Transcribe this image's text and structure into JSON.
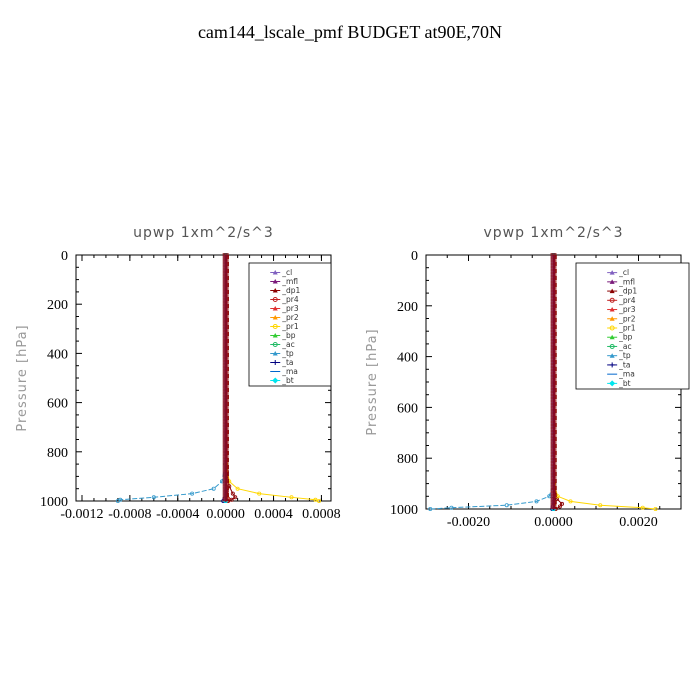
{
  "page": {
    "title": "cam144_lscale_pmf  BUDGET at90E,70N"
  },
  "chart_data": [
    {
      "type": "line",
      "title": "upwp   1xm^2/s^3",
      "xlabel": "",
      "ylabel": "Pressure [hPa]",
      "xlim": [
        -0.00125,
        0.00088
      ],
      "ylim": [
        1000,
        0
      ],
      "x_ticks": [
        -0.0012,
        -0.0008,
        -0.0004,
        0.0,
        0.0004,
        0.0008
      ],
      "x_tick_labels": [
        "-0.0012",
        "-0.0008",
        "-0.0004",
        "0.0000",
        "0.0004",
        "0.0008"
      ],
      "y_ticks": [
        0,
        200,
        400,
        600,
        800,
        1000
      ],
      "y_tick_labels": [
        "0",
        "200",
        "400",
        "600",
        "800",
        "1000"
      ],
      "legend_position": "top-right",
      "series": [
        {
          "name": "_cl",
          "color": "#8060c0",
          "pressure": [
            0,
            900,
            960,
            1000
          ],
          "values": [
            0,
            0,
            0,
            0
          ]
        },
        {
          "name": "_mfl",
          "color": "#7a1a7a",
          "pressure": [
            0,
            900,
            960,
            1000
          ],
          "values": [
            0,
            0,
            0,
            0
          ]
        },
        {
          "name": "_dp1",
          "color": "#8b0000",
          "pressure": [
            0,
            880,
            940,
            970,
            985,
            995,
            1000
          ],
          "values": [
            0,
            1e-05,
            3e-05,
            6e-05,
            8e-05,
            5e-05,
            2e-05
          ]
        },
        {
          "name": "_pr4",
          "color": "#c02020",
          "pressure": [
            0,
            880,
            960,
            990,
            1000
          ],
          "values": [
            0,
            0,
            1e-05,
            2e-05,
            1e-05
          ]
        },
        {
          "name": "_pr3",
          "color": "#e03030",
          "pressure": [
            0,
            900,
            980,
            1000
          ],
          "values": [
            0,
            0,
            0,
            0
          ]
        },
        {
          "name": "_pr2",
          "color": "#ff9900",
          "pressure": [
            0,
            900,
            980,
            1000
          ],
          "values": [
            0,
            0,
            1e-05,
            0
          ]
        },
        {
          "name": "_pr1",
          "color": "#ffd700",
          "pressure": [
            0,
            850,
            920,
            950,
            970,
            985,
            995,
            1000
          ],
          "values": [
            0,
            5e-06,
            3e-05,
            0.0001,
            0.00028,
            0.00055,
            0.00075,
            0.00078
          ]
        },
        {
          "name": "_bp",
          "color": "#33cc33",
          "pressure": [
            0,
            1000
          ],
          "values": [
            0,
            0
          ]
        },
        {
          "name": "_ac",
          "color": "#22bb66",
          "pressure": [
            0,
            1000
          ],
          "values": [
            0,
            0
          ]
        },
        {
          "name": "_tp",
          "color": "#3399cc",
          "pressure": [
            0,
            850,
            920,
            950,
            970,
            985,
            995,
            1000
          ],
          "values": [
            0,
            -5e-06,
            -3e-05,
            -0.0001,
            -0.00028,
            -0.0006,
            -0.00088,
            -0.0009
          ]
        },
        {
          "name": "_ta",
          "color": "#000080",
          "pressure": [
            0,
            960,
            990,
            1000
          ],
          "values": [
            0,
            0,
            -1e-05,
            -2e-05
          ]
        },
        {
          "name": "_ma",
          "color": "#0066cc",
          "pressure": [
            0,
            1000
          ],
          "values": [
            0,
            0
          ]
        },
        {
          "name": "_bt",
          "color": "#00e5ee",
          "pressure": [
            0,
            1000
          ],
          "values": [
            0,
            0
          ]
        }
      ]
    },
    {
      "type": "line",
      "title": "vpwp   1xm^2/s^3",
      "xlabel": "",
      "ylabel": "Pressure [hPa]",
      "xlim": [
        -0.003,
        0.003
      ],
      "ylim": [
        1000,
        0
      ],
      "x_ticks": [
        -0.002,
        0.0,
        0.002
      ],
      "x_tick_labels": [
        "-0.0020",
        "0.0000",
        "0.0020"
      ],
      "y_ticks": [
        0,
        200,
        400,
        600,
        800,
        1000
      ],
      "y_tick_labels": [
        "0",
        "200",
        "400",
        "600",
        "800",
        "1000"
      ],
      "legend_position": "top-right",
      "series": [
        {
          "name": "_cl",
          "color": "#8060c0",
          "pressure": [
            0,
            900,
            960,
            1000
          ],
          "values": [
            0,
            0,
            0,
            0
          ]
        },
        {
          "name": "_mfl",
          "color": "#7a1a7a",
          "pressure": [
            0,
            900,
            960,
            1000
          ],
          "values": [
            0,
            0,
            0,
            0
          ]
        },
        {
          "name": "_dp1",
          "color": "#8b0000",
          "pressure": [
            0,
            920,
            960,
            980,
            990,
            1000
          ],
          "values": [
            0,
            2e-05,
            8e-05,
            0.0002,
            0.00015,
            5e-05
          ]
        },
        {
          "name": "_pr4",
          "color": "#c02020",
          "pressure": [
            0,
            900,
            980,
            1000
          ],
          "values": [
            0,
            0,
            2e-05,
            1e-05
          ]
        },
        {
          "name": "_pr3",
          "color": "#e03030",
          "pressure": [
            0,
            900,
            980,
            1000
          ],
          "values": [
            0,
            0,
            0,
            0
          ]
        },
        {
          "name": "_pr2",
          "color": "#ff9900",
          "pressure": [
            0,
            900,
            980,
            1000
          ],
          "values": [
            0,
            0,
            2e-05,
            0
          ]
        },
        {
          "name": "_pr1",
          "color": "#ffd700",
          "pressure": [
            0,
            900,
            950,
            970,
            985,
            995,
            1000
          ],
          "values": [
            0,
            1e-05,
            0.0001,
            0.0004,
            0.0011,
            0.0021,
            0.0024
          ]
        },
        {
          "name": "_bp",
          "color": "#33cc33",
          "pressure": [
            0,
            1000
          ],
          "values": [
            0,
            0
          ]
        },
        {
          "name": "_ac",
          "color": "#22bb66",
          "pressure": [
            0,
            1000
          ],
          "values": [
            0,
            0
          ]
        },
        {
          "name": "_tp",
          "color": "#3399cc",
          "pressure": [
            0,
            900,
            950,
            970,
            985,
            995,
            1000
          ],
          "values": [
            0,
            -1e-05,
            -0.0001,
            -0.0004,
            -0.0011,
            -0.0024,
            -0.0029
          ]
        },
        {
          "name": "_ta",
          "color": "#000080",
          "pressure": [
            0,
            960,
            990,
            1000
          ],
          "values": [
            0,
            0,
            -2e-05,
            -3e-05
          ]
        },
        {
          "name": "_ma",
          "color": "#0066cc",
          "pressure": [
            0,
            1000
          ],
          "values": [
            0,
            0
          ]
        },
        {
          "name": "_bt",
          "color": "#00e5ee",
          "pressure": [
            0,
            1000
          ],
          "values": [
            0,
            0
          ]
        }
      ]
    }
  ]
}
